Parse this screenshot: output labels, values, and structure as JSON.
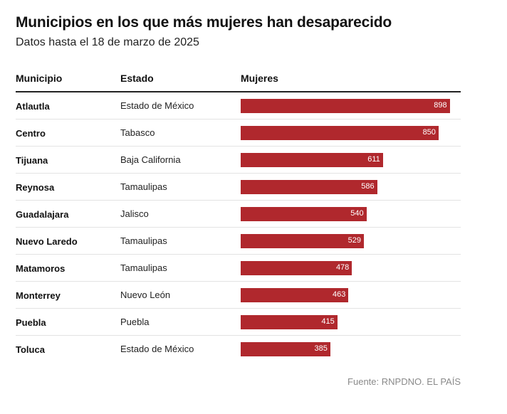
{
  "title": "Municipios en los que más mujeres han desaparecido",
  "subtitle": "Datos hasta el 18 de marzo de 2025",
  "source": "Fuente: RNPDNO. EL PAÍS",
  "colors": {
    "bar": "#b0282d"
  },
  "chart_data": {
    "type": "bar",
    "title": "Municipios en los que más mujeres han desaparecido",
    "subtitle": "Datos hasta el 18 de marzo de 2025",
    "columns": [
      "Municipio",
      "Estado",
      "Mujeres"
    ],
    "rows": [
      {
        "municipio": "Atlautla",
        "estado": "Estado de México",
        "mujeres": 898
      },
      {
        "municipio": "Centro",
        "estado": "Tabasco",
        "mujeres": 850
      },
      {
        "municipio": "Tijuana",
        "estado": "Baja California",
        "mujeres": 611
      },
      {
        "municipio": "Reynosa",
        "estado": "Tamaulipas",
        "mujeres": 586
      },
      {
        "municipio": "Guadalajara",
        "estado": "Jalisco",
        "mujeres": 540
      },
      {
        "municipio": "Nuevo Laredo",
        "estado": "Tamaulipas",
        "mujeres": 529
      },
      {
        "municipio": "Matamoros",
        "estado": "Tamaulipas",
        "mujeres": 478
      },
      {
        "municipio": "Monterrey",
        "estado": "Nuevo León",
        "mujeres": 463
      },
      {
        "municipio": "Puebla",
        "estado": "Puebla",
        "mujeres": 415
      },
      {
        "municipio": "Toluca",
        "estado": "Estado de México",
        "mujeres": 385
      }
    ],
    "xlim": [
      0,
      945
    ]
  }
}
